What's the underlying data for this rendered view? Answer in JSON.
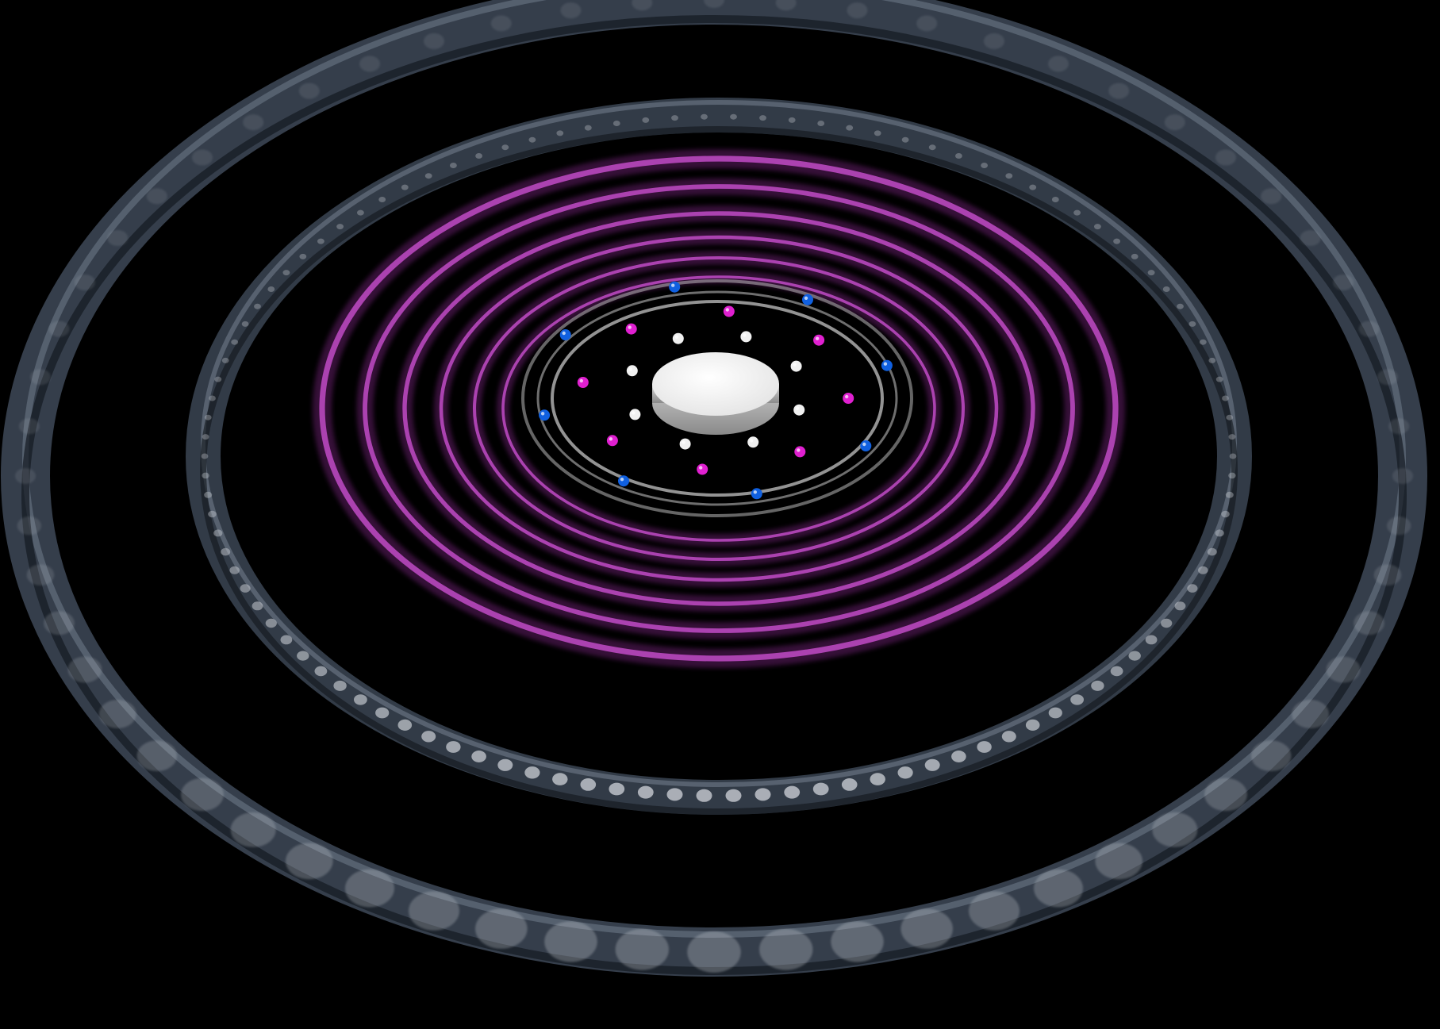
{
  "scene": {
    "background_color": "#000000",
    "outer_tube_color": "#3a4452",
    "outer_tube_highlight": "#7d8a99",
    "dot_color": "#c8ccd2",
    "glow_ring_color": "#9a2fa0",
    "glow_ring_bright": "#c04bc6",
    "inner_ring_color": "#b8b8b8",
    "disk_color": "#f4f4f4",
    "particle_colors": {
      "white": "#f0f0f0",
      "magenta": "#e020d0",
      "blue": "#1060e0"
    },
    "counts": {
      "outer_tubes": 2,
      "glow_rings": 6,
      "inner_rings": 3,
      "white_particles": 8,
      "magenta_particles": 8,
      "blue_particles": 8
    }
  }
}
